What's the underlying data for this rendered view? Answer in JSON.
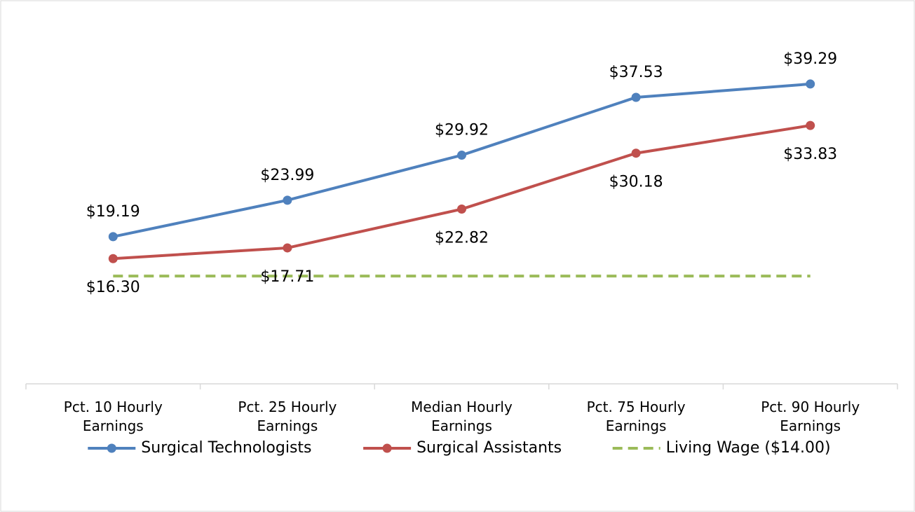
{
  "chart_data": {
    "type": "line",
    "categories": [
      "Pct. 10 Hourly Earnings",
      "Pct. 25 Hourly Earnings",
      "Median Hourly Earnings",
      "Pct. 75 Hourly Earnings",
      "Pct. 90 Hourly Earnings"
    ],
    "series": [
      {
        "name": "Surgical Technologists",
        "color": "#4f81bd",
        "values": [
          19.19,
          23.99,
          29.92,
          37.53,
          39.29
        ],
        "value_labels": [
          "$19.19",
          "$23.99",
          "$29.92",
          "$37.53",
          "$39.29"
        ],
        "label_position": "above"
      },
      {
        "name": "Surgical Assistants",
        "color": "#c0504d",
        "values": [
          16.3,
          17.71,
          22.82,
          30.18,
          33.83
        ],
        "value_labels": [
          "$16.30",
          "$17.71",
          "$22.82",
          "$30.18",
          "$33.83"
        ],
        "label_position": "below"
      },
      {
        "name": "Living Wage ($14.00)",
        "color": "#9bbb59",
        "values": [
          14,
          14,
          14,
          14,
          14
        ],
        "dashed": true
      }
    ],
    "ylim": [
      0,
      45
    ],
    "legend": "bottom"
  }
}
